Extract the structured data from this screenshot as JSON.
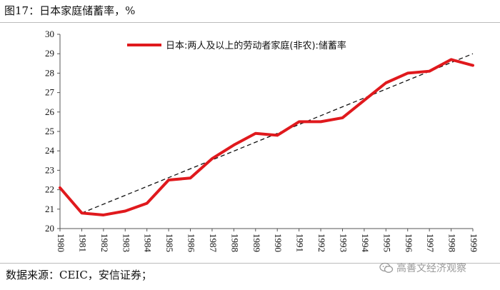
{
  "figure": {
    "title": "图17：日本家庭储蓄率，%",
    "source": "数据来源：CEIC，安信证券；",
    "watermark": "高善文经济观察"
  },
  "chart_data": {
    "type": "line",
    "x": [
      "1980",
      "1981",
      "1982",
      "1983",
      "1984",
      "1985",
      "1986",
      "1987",
      "1988",
      "1989",
      "1990",
      "1991",
      "1992",
      "1993",
      "1994",
      "1995",
      "1996",
      "1997",
      "1998",
      "1999"
    ],
    "series": [
      {
        "name": "日本:两人及以上的劳动者家庭(非农):储蓄率",
        "values": [
          22.1,
          20.8,
          20.7,
          20.9,
          21.3,
          22.5,
          22.6,
          23.6,
          24.3,
          24.9,
          24.8,
          25.5,
          25.5,
          25.7,
          26.6,
          27.5,
          28.0,
          28.1,
          28.7,
          28.4
        ],
        "color": "#e0191d"
      }
    ],
    "trendline": {
      "style": "dashed",
      "color": "#111111",
      "from": [
        "1981",
        20.8
      ],
      "to": [
        "1999",
        29.0
      ]
    },
    "ylim": [
      20,
      30
    ],
    "yticks": [
      20,
      21,
      22,
      23,
      24,
      25,
      26,
      27,
      28,
      29,
      30
    ],
    "legend_position": "top-center",
    "grid": false
  }
}
